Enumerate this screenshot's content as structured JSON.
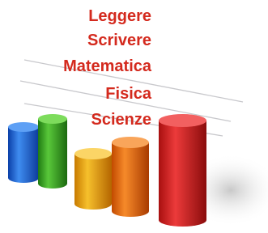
{
  "labels": [
    "Leggere",
    "Scrivere",
    "Matematica",
    "Fisica",
    "Scienze"
  ]
}
